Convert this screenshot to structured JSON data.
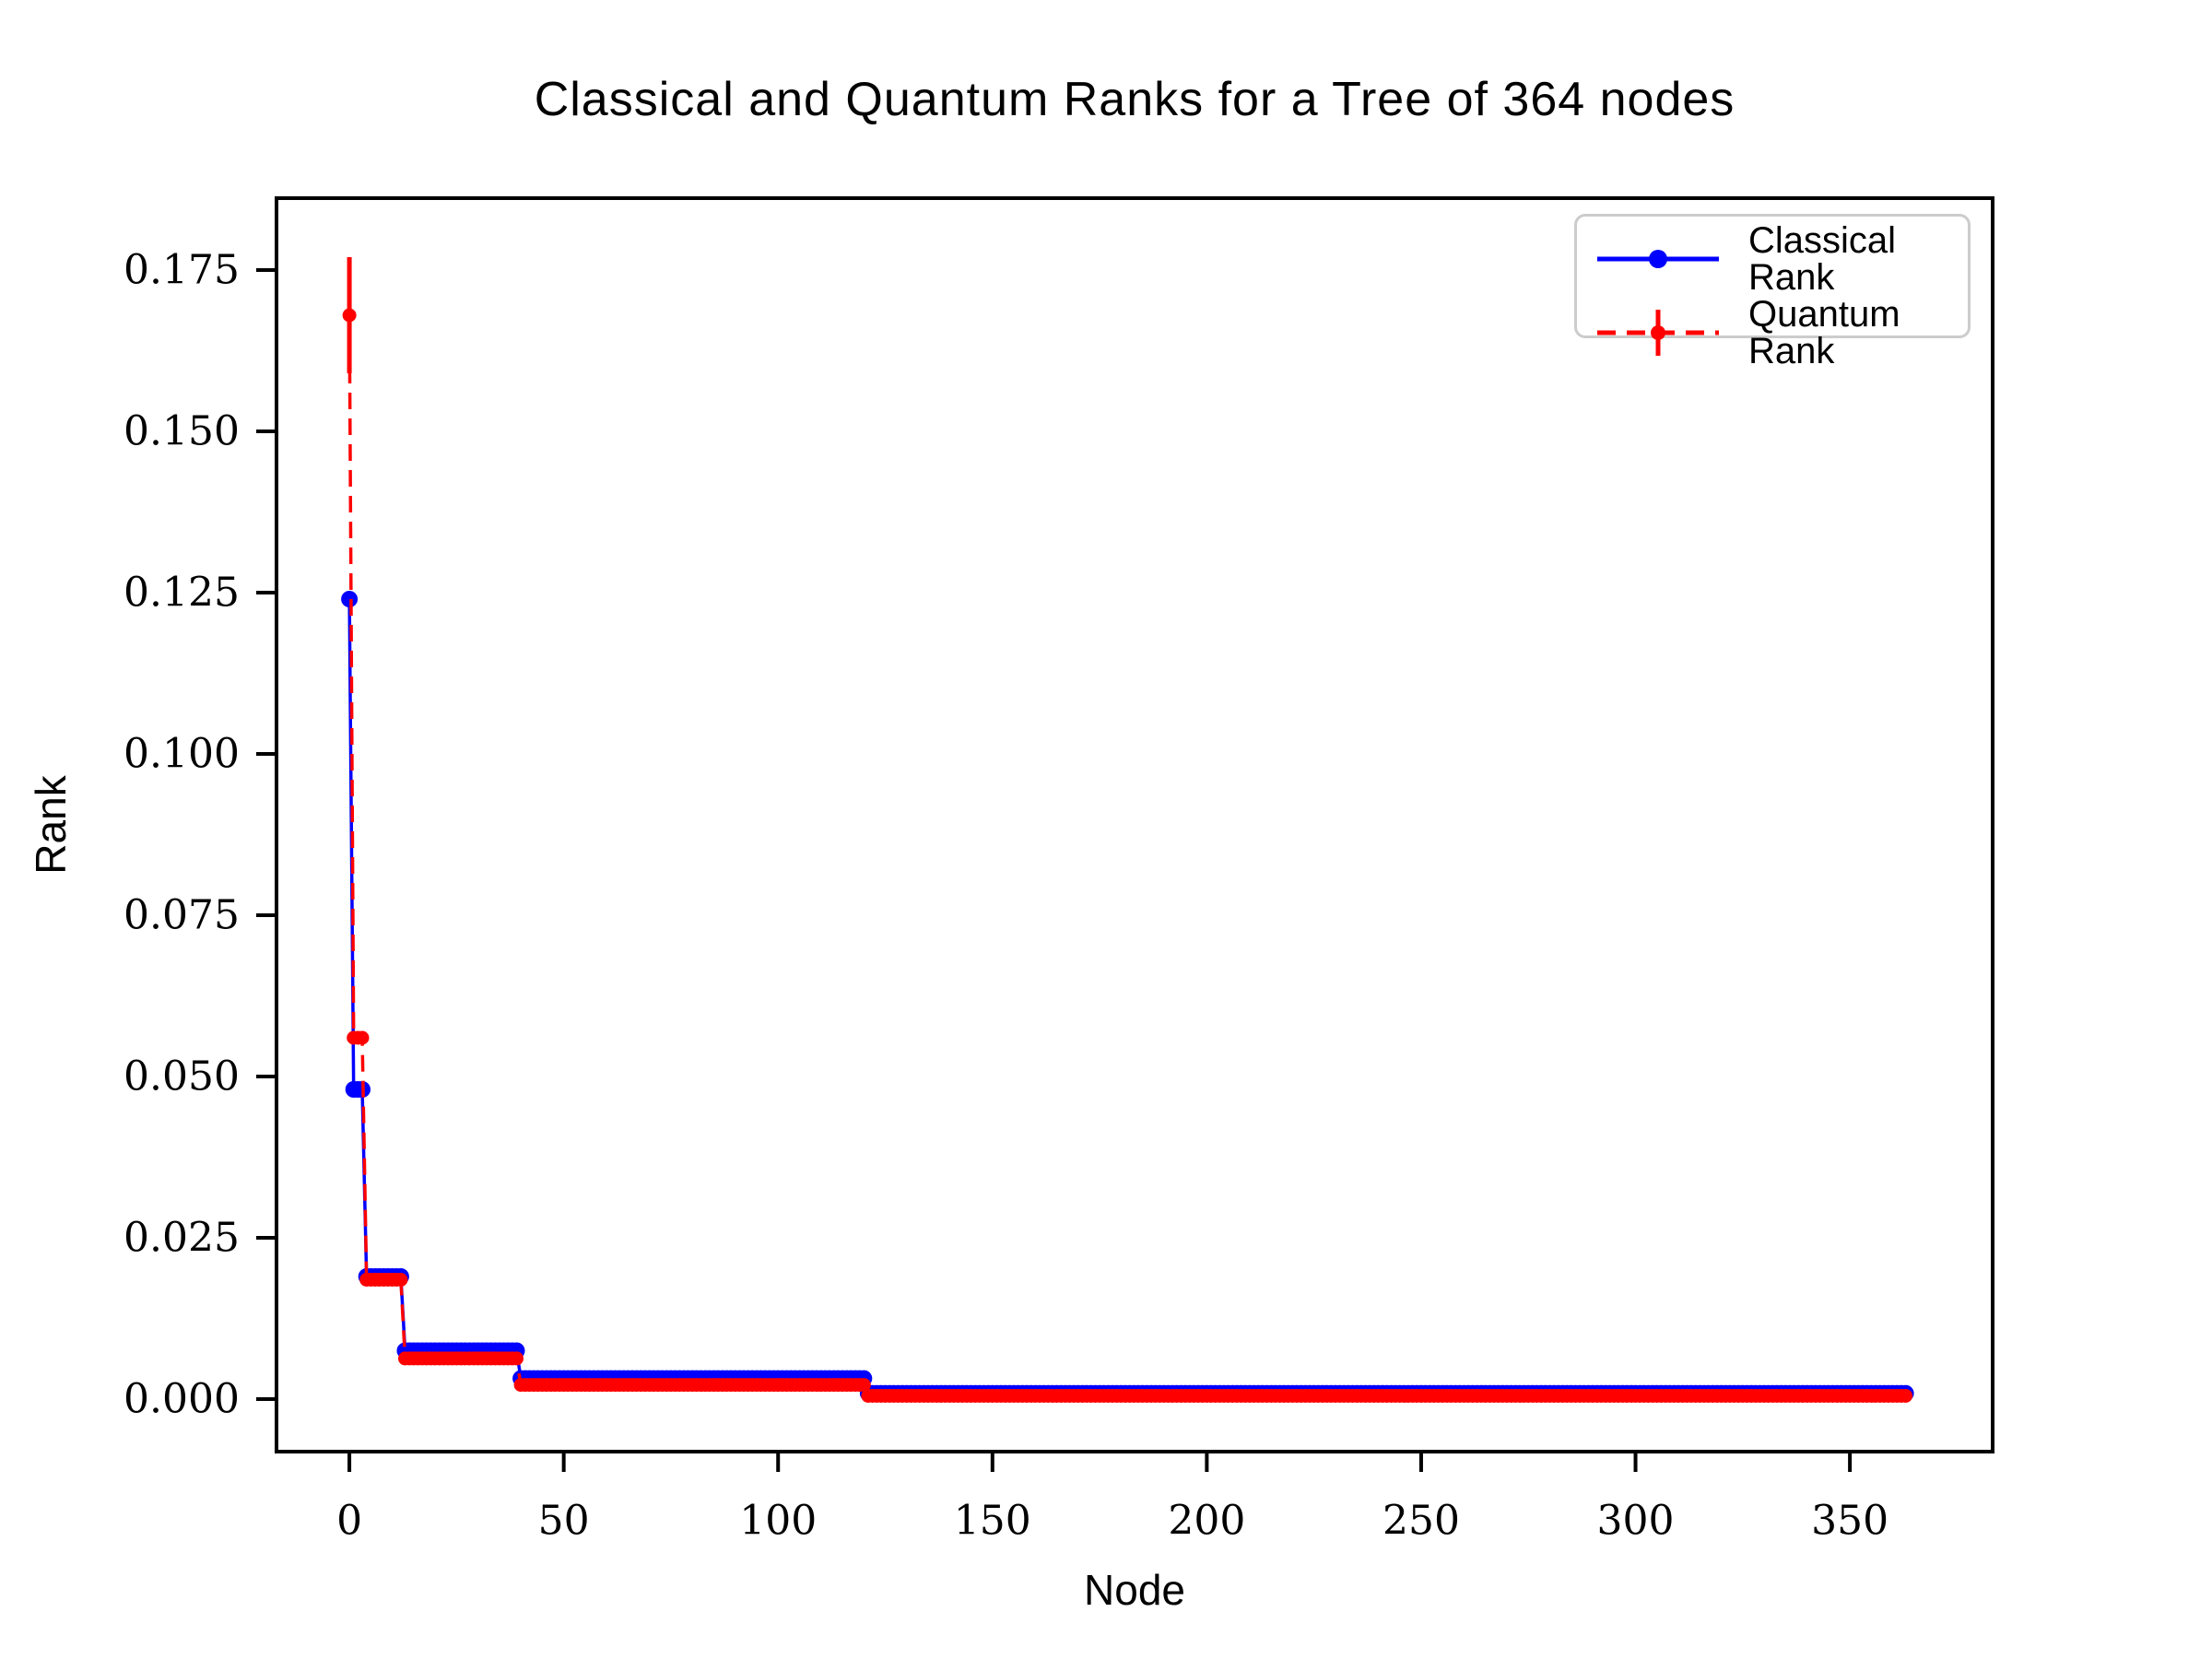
{
  "figure": {
    "title": "Classical and Quantum Ranks for a Tree of 364 nodes",
    "background": "#ffffff"
  },
  "axes": {
    "xlabel": "Node",
    "ylabel": "Rank"
  },
  "legend": {
    "items": [
      {
        "label": "Classical Rank",
        "swatch": "blue-solid-line-circle-marker"
      },
      {
        "label": "Quantum Rank",
        "swatch": "red-dashed-line-errorbar-marker"
      }
    ]
  },
  "colors": {
    "classical": "#0000ff",
    "quantum": "#ff0000",
    "axis": "#000000",
    "legend_border": "#cccccc",
    "background": "#ffffff"
  },
  "chart_data": {
    "type": "line",
    "title": "Classical and Quantum Ranks for a Tree of 364 nodes",
    "xlabel": "Node",
    "ylabel": "Rank",
    "n_nodes": 364,
    "x_range_nodes": [
      0,
      363
    ],
    "xlim": [
      -17,
      383.3
    ],
    "ylim": [
      -0.00814,
      0.18614
    ],
    "xticks": [
      0,
      50,
      100,
      150,
      200,
      250,
      300,
      350
    ],
    "yticks": [
      0,
      0.025,
      0.05,
      0.075,
      0.1,
      0.125,
      0.15,
      0.175
    ],
    "ytick_labels": [
      "0.000",
      "0.025",
      "0.050",
      "0.075",
      "0.100",
      "0.125",
      "0.150",
      "0.175"
    ],
    "grid": false,
    "legend_position": "upper right",
    "series": [
      {
        "name": "Classical Rank",
        "color": "#0000ff",
        "line_style": "solid",
        "marker": "circle"
      },
      {
        "name": "Quantum Rank",
        "color": "#ff0000",
        "line_style": "dashed",
        "marker": "circle-with-errorbar"
      }
    ],
    "levels": [
      {
        "tree_level": 0,
        "node_start": 0,
        "node_end": 0,
        "classical_rank": 0.124,
        "quantum_rank": 0.168,
        "quantum_err": 0.009
      },
      {
        "tree_level": 1,
        "node_start": 1,
        "node_end": 3,
        "classical_rank": 0.048,
        "quantum_rank": 0.056,
        "quantum_err": 0
      },
      {
        "tree_level": 2,
        "node_start": 4,
        "node_end": 12,
        "classical_rank": 0.019,
        "quantum_rank": 0.0185,
        "quantum_err": 0
      },
      {
        "tree_level": 3,
        "node_start": 13,
        "node_end": 39,
        "classical_rank": 0.0075,
        "quantum_rank": 0.0063,
        "quantum_err": 0
      },
      {
        "tree_level": 4,
        "node_start": 40,
        "node_end": 120,
        "classical_rank": 0.0032,
        "quantum_rank": 0.0022,
        "quantum_err": 0
      },
      {
        "tree_level": 5,
        "node_start": 121,
        "node_end": 363,
        "classical_rank": 0.0009,
        "quantum_rank": 0.0005,
        "quantum_err": 0
      }
    ]
  }
}
